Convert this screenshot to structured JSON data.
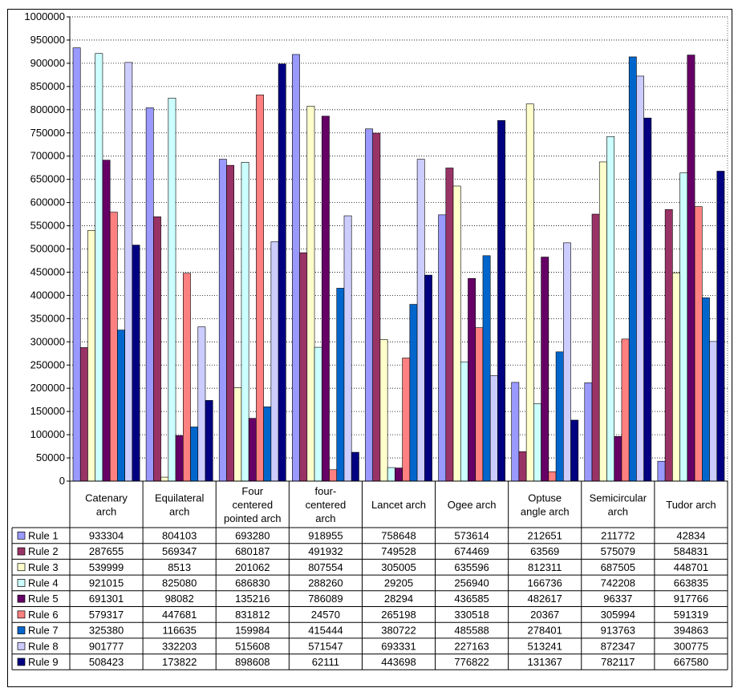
{
  "chart_data": {
    "type": "bar",
    "title": "",
    "xlabel": "",
    "ylabel": "",
    "ylim": [
      0,
      1000000
    ],
    "ytick_step": 50000,
    "grid": "horizontal-dotted",
    "legend_placement": "left-of-data-table",
    "categories": [
      [
        "Catenary",
        "arch"
      ],
      [
        "Equilateral",
        "arch"
      ],
      [
        "Four",
        "centered",
        "pointed arch"
      ],
      [
        "four-",
        "centered",
        "arch"
      ],
      [
        "Lancet arch"
      ],
      [
        "Ogee arch"
      ],
      [
        "Optuse",
        "angle arch"
      ],
      [
        "Semicircular",
        "arch"
      ],
      [
        "Tudor arch"
      ]
    ],
    "series": [
      {
        "name": "Rule 1",
        "color": "#9999ff",
        "values": [
          933304,
          804103,
          693280,
          918955,
          758648,
          573614,
          212651,
          211772,
          42834
        ]
      },
      {
        "name": "Rule 2",
        "color": "#993366",
        "values": [
          287655,
          569347,
          680187,
          491932,
          749528,
          674469,
          63569,
          575079,
          584831
        ]
      },
      {
        "name": "Rule 3",
        "color": "#ffffcc",
        "values": [
          539999,
          8513,
          201062,
          807554,
          305005,
          635596,
          812311,
          687505,
          448701
        ]
      },
      {
        "name": "Rule 4",
        "color": "#ccffff",
        "values": [
          921015,
          825080,
          686830,
          288260,
          29205,
          256940,
          166736,
          742208,
          663835
        ]
      },
      {
        "name": "Rule 5",
        "color": "#660066",
        "values": [
          691301,
          98082,
          135216,
          786089,
          28294,
          436585,
          482617,
          96337,
          917766
        ]
      },
      {
        "name": "Rule 6",
        "color": "#ff8080",
        "values": [
          579317,
          447681,
          831812,
          24570,
          265198,
          330518,
          20367,
          305994,
          591319
        ]
      },
      {
        "name": "Rule 7",
        "color": "#0066cc",
        "values": [
          325380,
          116635,
          159984,
          415444,
          380722,
          485588,
          278401,
          913763,
          394863
        ]
      },
      {
        "name": "Rule 8",
        "color": "#ccccff",
        "values": [
          901777,
          332203,
          515608,
          571547,
          693331,
          227163,
          513241,
          872347,
          300775
        ]
      },
      {
        "name": "Rule 9",
        "color": "#000080",
        "values": [
          508423,
          173822,
          898608,
          62111,
          443698,
          776822,
          131367,
          782117,
          667580
        ]
      }
    ]
  }
}
